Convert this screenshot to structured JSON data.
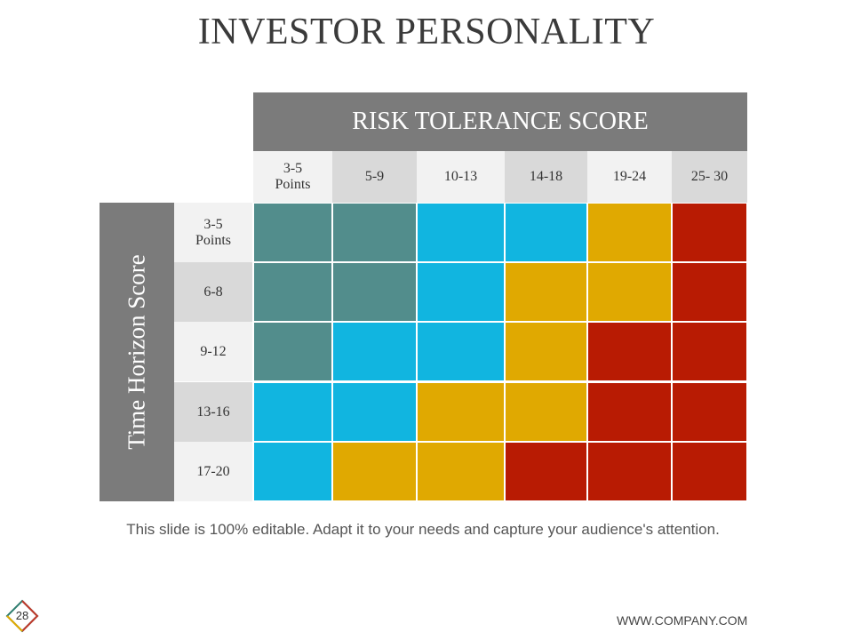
{
  "title": "INVESTOR PERSONALITY",
  "risk_header": "RISK TOLERANCE SCORE",
  "time_header": "Time Horizon Score",
  "columns": [
    {
      "line1": "3-5",
      "line2": "Points"
    },
    {
      "line1": "5-9",
      "line2": ""
    },
    {
      "line1": "10-13",
      "line2": ""
    },
    {
      "line1": "14-18",
      "line2": ""
    },
    {
      "line1": "19-24",
      "line2": ""
    },
    {
      "line1": "25-  30",
      "line2": ""
    }
  ],
  "rows": [
    {
      "line1": "3-5",
      "line2": "Points"
    },
    {
      "line1": "6-8",
      "line2": ""
    },
    {
      "line1": "9-12",
      "line2": ""
    },
    {
      "line1": "13-16",
      "line2": ""
    },
    {
      "line1": "17-20",
      "line2": ""
    }
  ],
  "colors": {
    "teal": "#528d8c",
    "blue": "#11b5e0",
    "gold": "#e0a901",
    "red": "#b81b03",
    "header_gray": "#7b7b7b",
    "header_light": "#f2f2f2",
    "header_dark": "#d9d9d9"
  },
  "grid": [
    [
      "teal",
      "teal",
      "blue",
      "blue",
      "gold",
      "red"
    ],
    [
      "teal",
      "teal",
      "blue",
      "gold",
      "gold",
      "red"
    ],
    [
      "teal",
      "blue",
      "blue",
      "gold",
      "red",
      "red"
    ],
    [
      "blue",
      "blue",
      "gold",
      "gold",
      "red",
      "red"
    ],
    [
      "blue",
      "gold",
      "gold",
      "red",
      "red",
      "red"
    ]
  ],
  "footer_note": "This slide is 100% editable. Adapt it to your needs and capture your audience's attention.",
  "page_number": "28",
  "website": "WWW.COMPANY.COM"
}
